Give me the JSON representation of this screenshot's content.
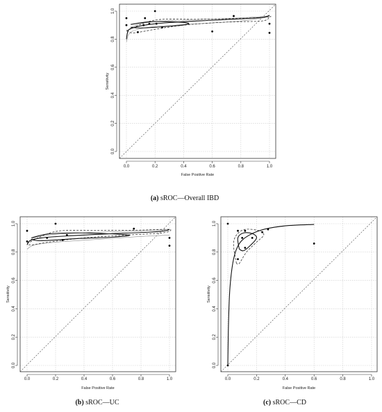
{
  "chart_data": [
    {
      "type": "scatter",
      "id": "a",
      "caption_tag": "(a)",
      "caption_text": " sROC—Overall IBD",
      "xlabel": "False Positive Rate",
      "ylabel": "Sensitivity",
      "xlim": [
        0,
        1
      ],
      "ylim": [
        0,
        1
      ],
      "xticks": [
        "0.0",
        "0.2",
        "0.4",
        "0.6",
        "0.8",
        "1.0"
      ],
      "yticks": [
        "0.0",
        "0.2",
        "0.4",
        "0.6",
        "0.8",
        "1.0"
      ],
      "grid": true,
      "points": [
        [
          0.0,
          0.95
        ],
        [
          0.0,
          0.9
        ],
        [
          0.08,
          0.85
        ],
        [
          0.12,
          0.9
        ],
        [
          0.13,
          0.95
        ],
        [
          0.16,
          0.91
        ],
        [
          0.2,
          1.0
        ],
        [
          0.21,
          0.91
        ],
        [
          0.25,
          0.885
        ],
        [
          0.6,
          0.855
        ],
        [
          0.75,
          0.965
        ],
        [
          1.0,
          0.91
        ],
        [
          1.0,
          0.845
        ]
      ],
      "summary_curve": [
        [
          0.0,
          0.8
        ],
        [
          0.01,
          0.855
        ],
        [
          0.03,
          0.875
        ],
        [
          0.1,
          0.895
        ],
        [
          0.2,
          0.91
        ],
        [
          0.4,
          0.925
        ],
        [
          0.6,
          0.935
        ],
        [
          0.8,
          0.945
        ],
        [
          0.95,
          0.955
        ],
        [
          1.0,
          0.97
        ]
      ],
      "confidence_region": [
        [
          0.03,
          0.905
        ],
        [
          0.15,
          0.923
        ],
        [
          0.3,
          0.925
        ],
        [
          0.43,
          0.915
        ],
        [
          0.4,
          0.902
        ],
        [
          0.25,
          0.888
        ],
        [
          0.1,
          0.88
        ],
        [
          0.03,
          0.885
        ]
      ],
      "prediction_region": [
        [
          0.0,
          0.86
        ],
        [
          0.2,
          0.936
        ],
        [
          0.5,
          0.942
        ],
        [
          0.8,
          0.948
        ],
        [
          0.99,
          0.958
        ],
        [
          1.0,
          0.96
        ],
        [
          0.95,
          0.93
        ],
        [
          0.7,
          0.922
        ],
        [
          0.4,
          0.9
        ],
        [
          0.2,
          0.87
        ],
        [
          0.05,
          0.845
        ],
        [
          0.0,
          0.86
        ]
      ],
      "ci_upper": [
        [
          0.0,
          0.82
        ],
        [
          0.02,
          0.87
        ],
        [
          0.08,
          0.905
        ],
        [
          0.2,
          0.925
        ],
        [
          0.5,
          0.94
        ],
        [
          0.8,
          0.952
        ],
        [
          1.0,
          0.965
        ]
      ],
      "ci_lower": [
        [
          0.0,
          0.78
        ],
        [
          0.02,
          0.84
        ],
        [
          0.08,
          0.87
        ],
        [
          0.2,
          0.89
        ],
        [
          0.5,
          0.91
        ],
        [
          0.8,
          0.93
        ],
        [
          1.0,
          0.96
        ]
      ]
    },
    {
      "type": "scatter",
      "id": "b",
      "caption_tag": "(b)",
      "caption_text": " sROC—UC",
      "xlabel": "False Positive Rate",
      "ylabel": "Sensitivity",
      "xlim": [
        0,
        1
      ],
      "ylim": [
        0,
        1
      ],
      "xticks": [
        "0.0",
        "0.2",
        "0.4",
        "0.6",
        "0.8",
        "1.0"
      ],
      "yticks": [
        "0.0",
        "0.2",
        "0.4",
        "0.6",
        "0.8",
        "1.0"
      ],
      "grid": true,
      "points": [
        [
          0.0,
          0.95
        ],
        [
          0.0,
          0.875
        ],
        [
          0.14,
          0.9
        ],
        [
          0.2,
          1.0
        ],
        [
          0.25,
          0.885
        ],
        [
          0.28,
          0.92
        ],
        [
          0.75,
          0.965
        ],
        [
          1.0,
          0.9
        ],
        [
          1.0,
          0.845
        ]
      ],
      "summary_curve": [
        [
          0.0,
          0.85
        ],
        [
          0.02,
          0.88
        ],
        [
          0.1,
          0.9
        ],
        [
          0.3,
          0.915
        ],
        [
          0.6,
          0.93
        ],
        [
          0.85,
          0.94
        ],
        [
          0.97,
          0.95
        ],
        [
          1.0,
          0.96
        ]
      ],
      "confidence_region": [
        [
          0.03,
          0.9
        ],
        [
          0.15,
          0.928
        ],
        [
          0.35,
          0.935
        ],
        [
          0.55,
          0.93
        ],
        [
          0.72,
          0.92
        ],
        [
          0.6,
          0.905
        ],
        [
          0.35,
          0.895
        ],
        [
          0.1,
          0.88
        ],
        [
          0.03,
          0.89
        ]
      ],
      "prediction_region": [
        [
          0.0,
          0.86
        ],
        [
          0.2,
          0.945
        ],
        [
          0.5,
          0.952
        ],
        [
          0.8,
          0.955
        ],
        [
          1.0,
          0.96
        ],
        [
          0.95,
          0.935
        ],
        [
          0.7,
          0.92
        ],
        [
          0.4,
          0.9
        ],
        [
          0.15,
          0.87
        ],
        [
          0.03,
          0.85
        ],
        [
          0.0,
          0.86
        ]
      ],
      "ci_upper": [
        [
          0.0,
          0.86
        ],
        [
          0.05,
          0.9
        ],
        [
          0.2,
          0.925
        ],
        [
          0.5,
          0.94
        ],
        [
          0.8,
          0.95
        ],
        [
          1.0,
          0.96
        ]
      ],
      "ci_lower": [
        [
          0.0,
          0.82
        ],
        [
          0.05,
          0.85
        ],
        [
          0.2,
          0.87
        ],
        [
          0.5,
          0.89
        ],
        [
          0.8,
          0.91
        ],
        [
          1.0,
          0.92
        ]
      ]
    },
    {
      "type": "scatter",
      "id": "c",
      "caption_tag": "(c)",
      "caption_text": " sROC—CD",
      "xlabel": "False Positive Rate",
      "ylabel": "Sensitivity",
      "xlim": [
        0,
        1
      ],
      "ylim": [
        0,
        1
      ],
      "xticks": [
        "0.0",
        "0.2",
        "0.4",
        "0.6",
        "0.8",
        "1.0"
      ],
      "yticks": [
        "0.0",
        "0.2",
        "0.4",
        "0.6",
        "0.8",
        "1.0"
      ],
      "grid": true,
      "points": [
        [
          0.0,
          1.0
        ],
        [
          0.0,
          0.0
        ],
        [
          0.07,
          0.95
        ],
        [
          0.07,
          0.75
        ],
        [
          0.1,
          0.9
        ],
        [
          0.12,
          0.95
        ],
        [
          0.12,
          0.83
        ],
        [
          0.17,
          0.9
        ],
        [
          0.24,
          0.94
        ],
        [
          0.28,
          0.96
        ],
        [
          0.6,
          0.86
        ]
      ],
      "summary_curve": [
        [
          0.0,
          0.0
        ],
        [
          0.005,
          0.3
        ],
        [
          0.015,
          0.55
        ],
        [
          0.04,
          0.75
        ],
        [
          0.08,
          0.86
        ],
        [
          0.15,
          0.92
        ],
        [
          0.25,
          0.96
        ],
        [
          0.4,
          0.985
        ],
        [
          0.6,
          0.995
        ]
      ],
      "confidence_region": [
        [
          0.08,
          0.82
        ],
        [
          0.07,
          0.9
        ],
        [
          0.11,
          0.935
        ],
        [
          0.17,
          0.93
        ],
        [
          0.2,
          0.9
        ],
        [
          0.16,
          0.85
        ],
        [
          0.11,
          0.81
        ],
        [
          0.08,
          0.82
        ]
      ],
      "prediction_region": [
        [
          0.06,
          0.72
        ],
        [
          0.04,
          0.85
        ],
        [
          0.06,
          0.92
        ],
        [
          0.12,
          0.96
        ],
        [
          0.22,
          0.95
        ],
        [
          0.25,
          0.92
        ],
        [
          0.2,
          0.87
        ],
        [
          0.13,
          0.8
        ],
        [
          0.08,
          0.72
        ],
        [
          0.06,
          0.72
        ]
      ],
      "ci_upper": [],
      "ci_lower": []
    }
  ]
}
